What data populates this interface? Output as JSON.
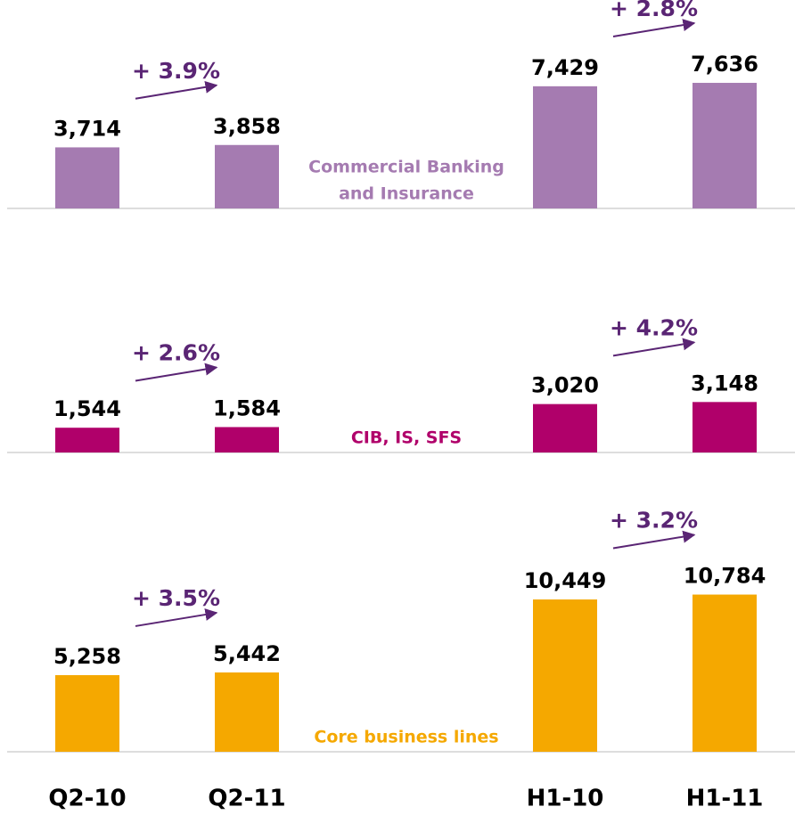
{
  "chart_data": [
    {
      "type": "bar",
      "label": [
        "Commercial Banking",
        "and Insurance"
      ],
      "color": "#a57bb1",
      "values": [
        3714,
        3858,
        7429,
        7636
      ],
      "value_labels": [
        "3,714",
        "3,858",
        "7,429",
        "7,636"
      ],
      "annotations": [
        "+ 3.9%",
        "+ 2.8%"
      ],
      "ylim": [
        0,
        9750
      ]
    },
    {
      "type": "bar",
      "label": [
        "CIB, IS, SFS"
      ],
      "color": "#b0006a",
      "values": [
        1544,
        1584,
        3020,
        3148
      ],
      "value_labels": [
        "1,544",
        "1,584",
        "3,020",
        "3,148"
      ],
      "annotations": [
        "+ 2.6%",
        "+ 4.2%"
      ],
      "ylim": [
        0,
        10000
      ]
    },
    {
      "type": "bar",
      "label": [
        "Core business lines"
      ],
      "color": "#f5a800",
      "categories": [
        "Q2-10",
        "Q2-11",
        "H1-10",
        "H1-11"
      ],
      "values": [
        5258,
        5442,
        10449,
        10784
      ],
      "value_labels": [
        "5,258",
        "5,442",
        "10,449",
        "10,784"
      ],
      "annotations": [
        "+ 3.5%",
        "+ 3.2%"
      ],
      "ylim": [
        0,
        11000
      ]
    }
  ]
}
